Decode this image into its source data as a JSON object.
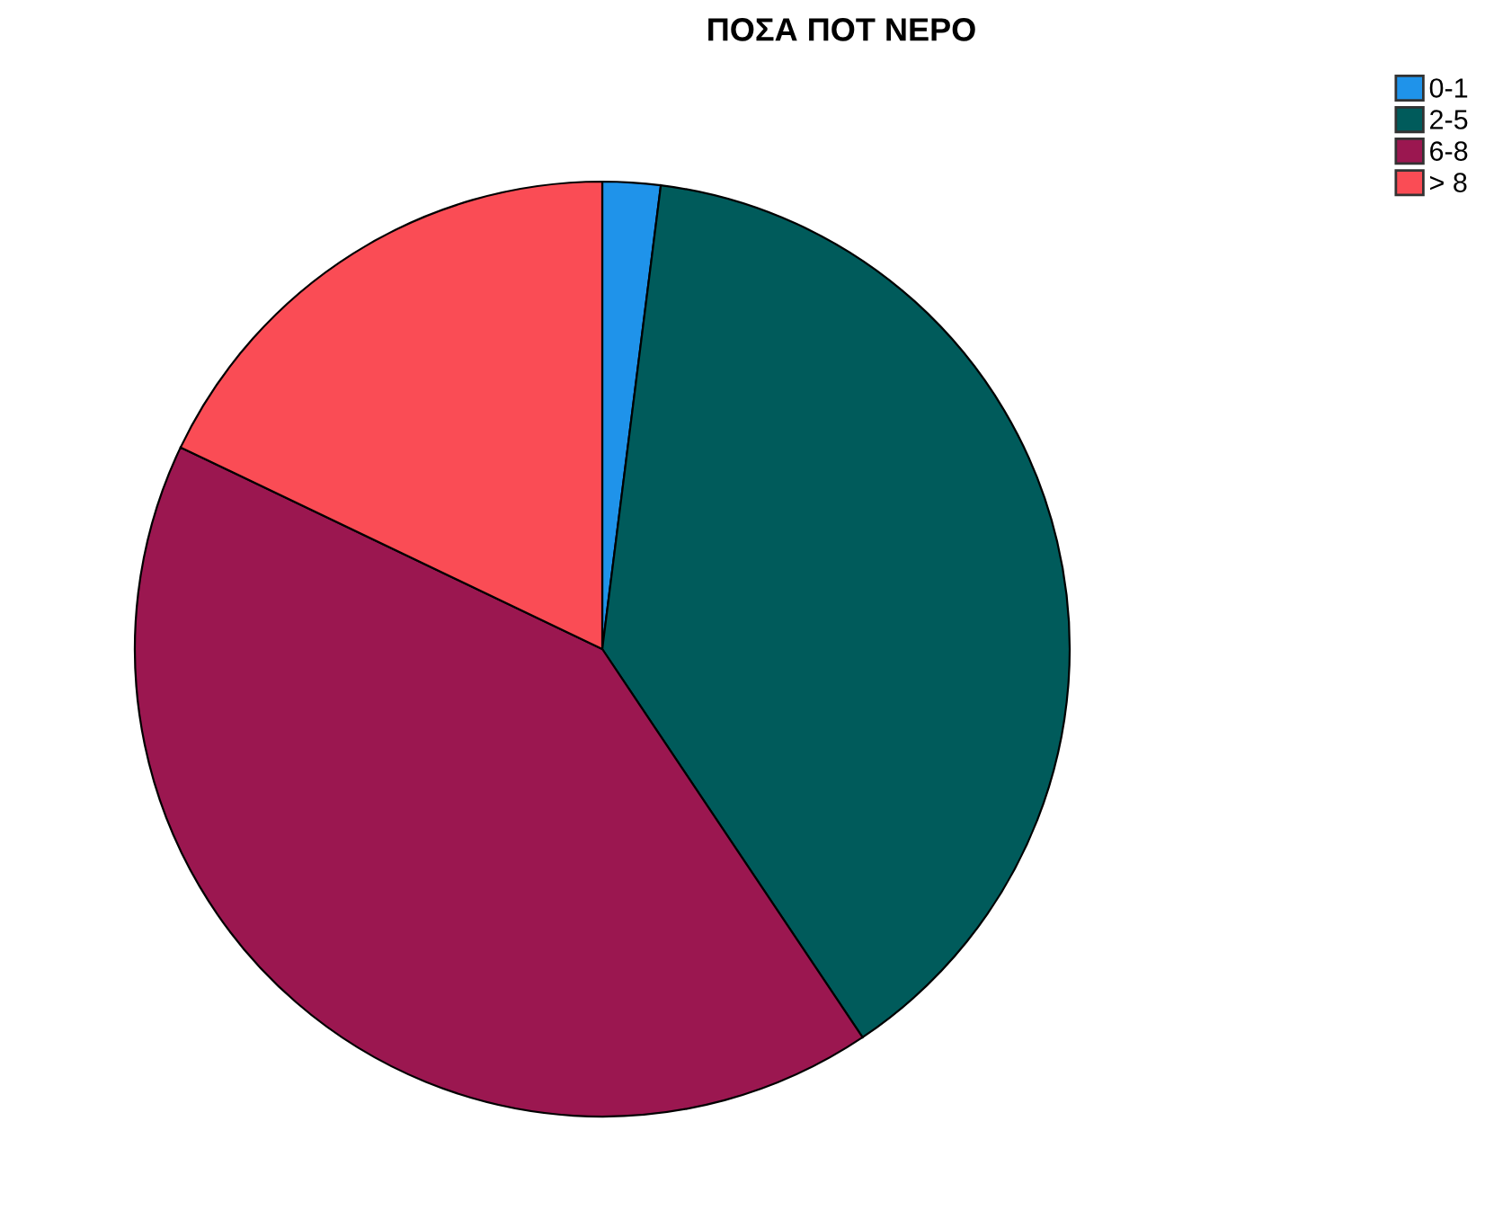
{
  "chart_data": {
    "type": "pie",
    "title": "ΠΟΣΑ ΠΟΤ ΝΕΡΟ",
    "categories": [
      "0-1",
      "2-5",
      "6-8",
      "> 8"
    ],
    "values": [
      2.0,
      38.6,
      41.5,
      17.9
    ],
    "colors": [
      "#1f93ea",
      "#005b5b",
      "#9b1750",
      "#fa4c55"
    ],
    "legend": "top right"
  }
}
